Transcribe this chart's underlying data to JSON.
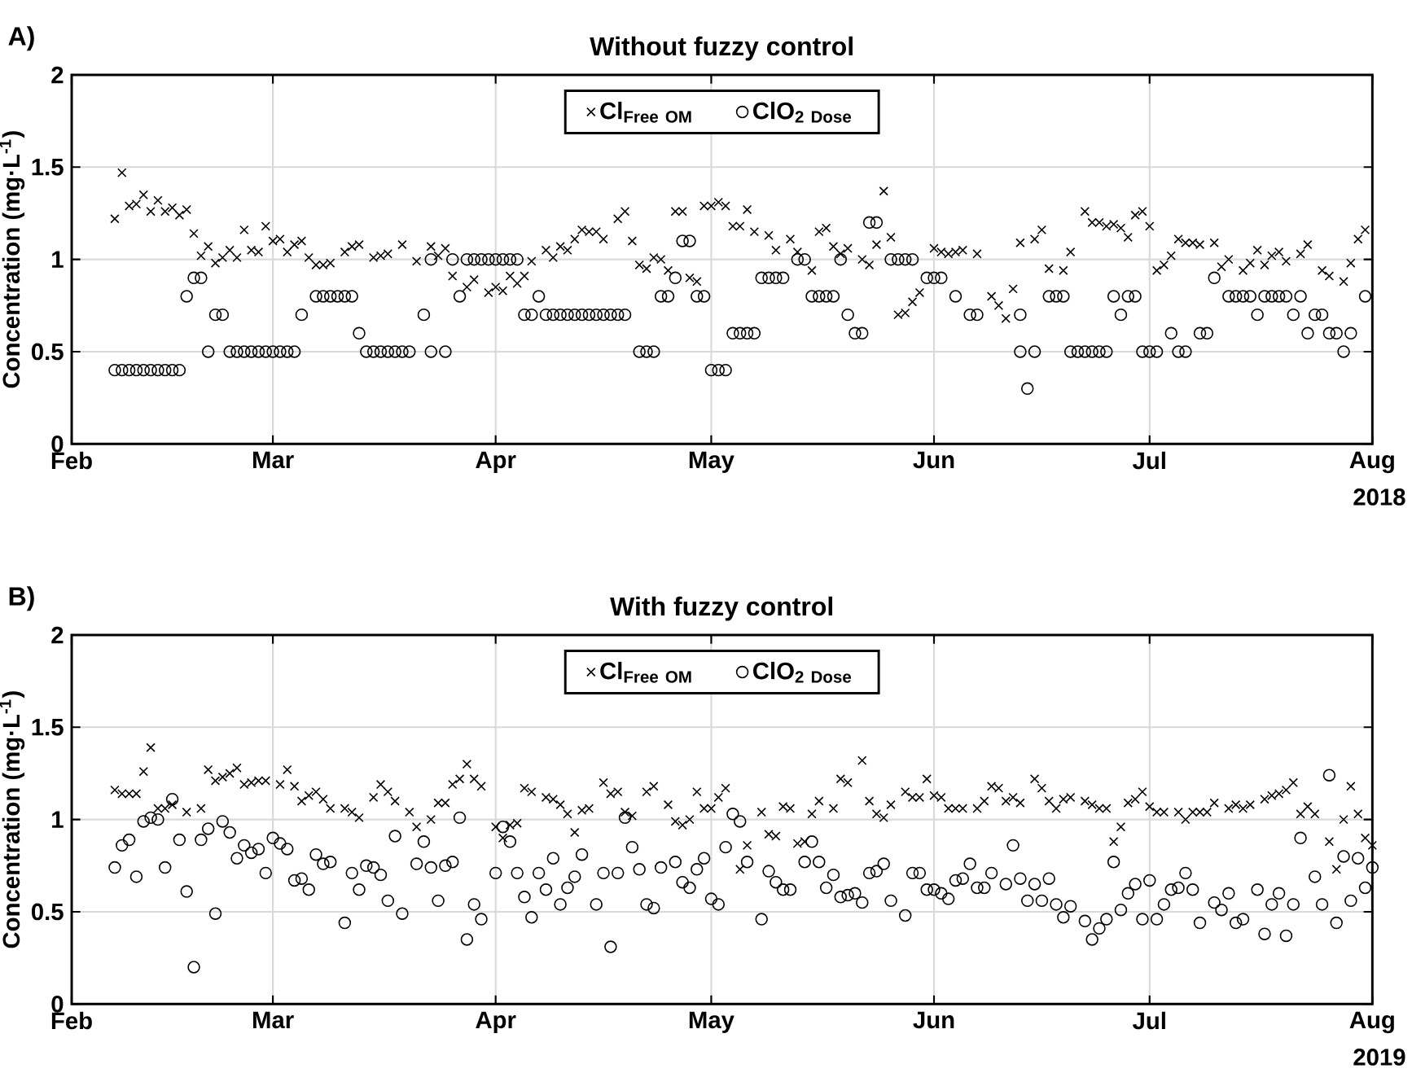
{
  "chart_data": [
    {
      "type": "scatter",
      "title": "Without fuzzy control",
      "xlabel": "2018",
      "ylabel": "Concentration (mg·L$^{-1}$)",
      "annotations": [
        "A)"
      ],
      "xlim": [
        "2018-02-01",
        "2018-08-01"
      ],
      "xticks": [
        {
          "value": "2018-02-01",
          "label": "Feb"
        },
        {
          "value": "2018-03-01",
          "label": "Mar"
        },
        {
          "value": "2018-04-01",
          "label": "Apr"
        },
        {
          "value": "2018-05-01",
          "label": "May"
        },
        {
          "value": "2018-06-01",
          "label": "Jun"
        },
        {
          "value": "2018-07-01",
          "label": "Jul"
        },
        {
          "value": "2018-08-01",
          "label": "Aug"
        }
      ],
      "ylim": [
        0,
        2
      ],
      "yticks": [
        0,
        0.5,
        1,
        1.5,
        2
      ],
      "grid": true,
      "legend": "top",
      "series": [
        {
          "name": "\\mathbf{Cl}_{\\mathbf{Free\\ OM}}",
          "color": "#000000",
          "marker": "cross",
          "x": [
            "2018-02-07",
            "2018-02-08",
            "2018-02-09",
            "2018-02-10",
            "2018-02-11",
            "2018-02-12",
            "2018-02-13",
            "2018-02-14",
            "2018-02-15",
            "2018-02-16",
            "2018-02-17",
            "2018-02-18",
            "2018-02-19",
            "2018-02-20",
            "2018-02-21",
            "2018-02-22",
            "2018-02-23",
            "2018-02-24",
            "2018-02-25",
            "2018-02-26",
            "2018-02-27",
            "2018-02-28",
            "2018-03-01",
            "2018-03-02",
            "2018-03-03",
            "2018-03-04",
            "2018-03-05",
            "2018-03-06",
            "2018-03-07",
            "2018-03-08",
            "2018-03-09",
            "2018-03-11",
            "2018-03-12",
            "2018-03-13",
            "2018-03-15",
            "2018-03-16",
            "2018-03-17",
            "2018-03-19",
            "2018-03-21",
            "2018-03-23",
            "2018-03-24",
            "2018-03-25",
            "2018-03-26",
            "2018-03-28",
            "2018-03-29",
            "2018-03-31",
            "2018-04-01",
            "2018-04-02",
            "2018-04-03",
            "2018-04-04",
            "2018-04-05",
            "2018-04-06",
            "2018-04-08",
            "2018-04-09",
            "2018-04-10",
            "2018-04-11",
            "2018-04-12",
            "2018-04-13",
            "2018-04-14",
            "2018-04-15",
            "2018-04-16",
            "2018-04-18",
            "2018-04-19",
            "2018-04-20",
            "2018-04-21",
            "2018-04-22",
            "2018-04-23",
            "2018-04-24",
            "2018-04-25",
            "2018-04-26",
            "2018-04-27",
            "2018-04-28",
            "2018-04-29",
            "2018-04-30",
            "2018-05-01",
            "2018-05-02",
            "2018-05-03",
            "2018-05-04",
            "2018-05-05",
            "2018-05-06",
            "2018-05-07",
            "2018-05-09",
            "2018-05-10",
            "2018-05-12",
            "2018-05-13",
            "2018-05-15",
            "2018-05-16",
            "2018-05-17",
            "2018-05-18",
            "2018-05-19",
            "2018-05-20",
            "2018-05-22",
            "2018-05-23",
            "2018-05-24",
            "2018-05-25",
            "2018-05-26",
            "2018-05-27",
            "2018-05-28",
            "2018-05-29",
            "2018-05-30",
            "2018-06-01",
            "2018-06-02",
            "2018-06-03",
            "2018-06-04",
            "2018-06-05",
            "2018-06-07",
            "2018-06-09",
            "2018-06-10",
            "2018-06-11",
            "2018-06-12",
            "2018-06-13",
            "2018-06-15",
            "2018-06-16",
            "2018-06-17",
            "2018-06-19",
            "2018-06-20",
            "2018-06-22",
            "2018-06-23",
            "2018-06-24",
            "2018-06-25",
            "2018-06-26",
            "2018-06-27",
            "2018-06-28",
            "2018-06-29",
            "2018-06-30",
            "2018-07-01",
            "2018-07-02",
            "2018-07-03",
            "2018-07-04",
            "2018-07-05",
            "2018-07-06",
            "2018-07-07",
            "2018-07-08",
            "2018-07-10",
            "2018-07-11",
            "2018-07-12",
            "2018-07-14",
            "2018-07-15",
            "2018-07-16",
            "2018-07-17",
            "2018-07-18",
            "2018-07-19",
            "2018-07-20",
            "2018-07-22",
            "2018-07-23",
            "2018-07-25",
            "2018-07-26",
            "2018-07-28",
            "2018-07-29",
            "2018-07-30",
            "2018-07-31"
          ],
          "values": [
            1.22,
            1.47,
            1.29,
            1.3,
            1.35,
            1.26,
            1.32,
            1.26,
            1.28,
            1.24,
            1.27,
            1.14,
            1.02,
            1.07,
            0.98,
            1.01,
            1.05,
            1.01,
            1.16,
            1.05,
            1.04,
            1.18,
            1.1,
            1.11,
            1.04,
            1.08,
            1.1,
            1.01,
            0.97,
            0.97,
            0.98,
            1.04,
            1.07,
            1.08,
            1.01,
            1.02,
            1.03,
            1.08,
            0.99,
            1.07,
            1.02,
            1.06,
            0.91,
            0.85,
            0.89,
            0.82,
            0.85,
            0.83,
            0.91,
            0.87,
            0.91,
            0.99,
            1.05,
            1.01,
            1.07,
            1.05,
            1.11,
            1.16,
            1.15,
            1.15,
            1.11,
            1.22,
            1.26,
            1.1,
            0.97,
            0.95,
            1.01,
            1.0,
            0.94,
            1.26,
            1.26,
            0.9,
            0.88,
            1.29,
            1.29,
            1.31,
            1.29,
            1.18,
            1.18,
            1.27,
            1.15,
            1.13,
            1.05,
            1.11,
            1.04,
            0.94,
            1.15,
            1.17,
            1.07,
            1.03,
            1.06,
            1.0,
            0.97,
            1.08,
            1.37,
            1.12,
            0.7,
            0.71,
            0.77,
            0.82,
            1.06,
            1.04,
            1.03,
            1.04,
            1.05,
            1.03,
            0.8,
            0.75,
            0.68,
            0.84,
            1.09,
            1.11,
            1.16,
            0.95,
            0.94,
            1.04,
            1.26,
            1.2,
            1.2,
            1.18,
            1.19,
            1.17,
            1.12,
            1.24,
            1.26,
            1.18,
            0.94,
            0.97,
            1.02,
            1.11,
            1.09,
            1.09,
            1.08,
            1.09,
            0.96,
            1.0,
            0.94,
            0.98,
            1.05,
            0.97,
            1.02,
            1.04,
            0.99,
            1.03,
            1.08,
            0.94,
            0.91,
            0.88,
            0.98,
            1.11,
            1.16
          ]
        },
        {
          "name": "\\mathbf{ClO}_{\\mathbf{2\\ Dose}}",
          "color": "#000000",
          "marker": "circle",
          "x": [
            "2018-02-07",
            "2018-02-08",
            "2018-02-09",
            "2018-02-10",
            "2018-02-11",
            "2018-02-12",
            "2018-02-13",
            "2018-02-14",
            "2018-02-15",
            "2018-02-16",
            "2018-02-17",
            "2018-02-18",
            "2018-02-19",
            "2018-02-20",
            "2018-02-21",
            "2018-02-22",
            "2018-02-23",
            "2018-02-24",
            "2018-02-25",
            "2018-02-26",
            "2018-02-27",
            "2018-02-28",
            "2018-03-01",
            "2018-03-02",
            "2018-03-03",
            "2018-03-04",
            "2018-03-05",
            "2018-03-07",
            "2018-03-08",
            "2018-03-09",
            "2018-03-10",
            "2018-03-11",
            "2018-03-12",
            "2018-03-13",
            "2018-03-14",
            "2018-03-15",
            "2018-03-16",
            "2018-03-17",
            "2018-03-18",
            "2018-03-19",
            "2018-03-20",
            "2018-03-22",
            "2018-03-23",
            "2018-03-23",
            "2018-03-25",
            "2018-03-26",
            "2018-03-27",
            "2018-03-28",
            "2018-03-29",
            "2018-03-30",
            "2018-03-31",
            "2018-04-01",
            "2018-04-02",
            "2018-04-03",
            "2018-04-04",
            "2018-04-05",
            "2018-04-06",
            "2018-04-07",
            "2018-04-08",
            "2018-04-09",
            "2018-04-10",
            "2018-04-11",
            "2018-04-12",
            "2018-04-13",
            "2018-04-14",
            "2018-04-15",
            "2018-04-16",
            "2018-04-17",
            "2018-04-18",
            "2018-04-19",
            "2018-04-21",
            "2018-04-22",
            "2018-04-23",
            "2018-04-24",
            "2018-04-25",
            "2018-04-26",
            "2018-04-27",
            "2018-04-28",
            "2018-04-29",
            "2018-04-30",
            "2018-05-01",
            "2018-05-02",
            "2018-05-03",
            "2018-05-04",
            "2018-05-05",
            "2018-05-06",
            "2018-05-07",
            "2018-05-08",
            "2018-05-09",
            "2018-05-10",
            "2018-05-11",
            "2018-05-13",
            "2018-05-14",
            "2018-05-15",
            "2018-05-16",
            "2018-05-17",
            "2018-05-18",
            "2018-05-19",
            "2018-05-20",
            "2018-05-21",
            "2018-05-22",
            "2018-05-23",
            "2018-05-24",
            "2018-05-26",
            "2018-05-27",
            "2018-05-28",
            "2018-05-29",
            "2018-05-31",
            "2018-06-01",
            "2018-06-02",
            "2018-06-04",
            "2018-06-06",
            "2018-06-07",
            "2018-06-13",
            "2018-06-13",
            "2018-06-14",
            "2018-06-15",
            "2018-06-17",
            "2018-06-18",
            "2018-06-19",
            "2018-06-20",
            "2018-06-21",
            "2018-06-22",
            "2018-06-23",
            "2018-06-24",
            "2018-06-25",
            "2018-06-26",
            "2018-06-27",
            "2018-06-28",
            "2018-06-29",
            "2018-06-30",
            "2018-07-01",
            "2018-07-02",
            "2018-07-04",
            "2018-07-05",
            "2018-07-06",
            "2018-07-08",
            "2018-07-09",
            "2018-07-10",
            "2018-07-12",
            "2018-07-13",
            "2018-07-14",
            "2018-07-15",
            "2018-07-16",
            "2018-07-17",
            "2018-07-18",
            "2018-07-19",
            "2018-07-20",
            "2018-07-21",
            "2018-07-22",
            "2018-07-23",
            "2018-07-24",
            "2018-07-25",
            "2018-07-26",
            "2018-07-27",
            "2018-07-28",
            "2018-07-29",
            "2018-07-31"
          ],
          "values": [
            0.4,
            0.4,
            0.4,
            0.4,
            0.4,
            0.4,
            0.4,
            0.4,
            0.4,
            0.4,
            0.8,
            0.9,
            0.9,
            0.5,
            0.7,
            0.7,
            0.5,
            0.5,
            0.5,
            0.5,
            0.5,
            0.5,
            0.5,
            0.5,
            0.5,
            0.5,
            0.7,
            0.8,
            0.8,
            0.8,
            0.8,
            0.8,
            0.8,
            0.6,
            0.5,
            0.5,
            0.5,
            0.5,
            0.5,
            0.5,
            0.5,
            0.7,
            0.5,
            1.0,
            0.5,
            1.0,
            0.8,
            1.0,
            1.0,
            1.0,
            1.0,
            1.0,
            1.0,
            1.0,
            1.0,
            0.7,
            0.7,
            0.8,
            0.7,
            0.7,
            0.7,
            0.7,
            0.7,
            0.7,
            0.7,
            0.7,
            0.7,
            0.7,
            0.7,
            0.7,
            0.5,
            0.5,
            0.5,
            0.8,
            0.8,
            0.9,
            1.1,
            1.1,
            0.8,
            0.8,
            0.4,
            0.4,
            0.4,
            0.6,
            0.6,
            0.6,
            0.6,
            0.9,
            0.9,
            0.9,
            0.9,
            1.0,
            1.0,
            0.8,
            0.8,
            0.8,
            0.8,
            1.0,
            0.7,
            0.6,
            0.6,
            1.2,
            1.2,
            1.0,
            1.0,
            1.0,
            1.0,
            0.9,
            0.9,
            0.9,
            0.8,
            0.7,
            0.7,
            0.7,
            0.5,
            0.3,
            0.5,
            0.8,
            0.8,
            0.8,
            0.5,
            0.5,
            0.5,
            0.5,
            0.5,
            0.5,
            0.8,
            0.7,
            0.8,
            0.8,
            0.5,
            0.5,
            0.5,
            0.6,
            0.5,
            0.5,
            0.6,
            0.6,
            0.9,
            0.8,
            0.8,
            0.8,
            0.8,
            0.7,
            0.8,
            0.8,
            0.8,
            0.8,
            0.7,
            0.8,
            0.6,
            0.7,
            0.7,
            0.6,
            0.6,
            0.5,
            0.6,
            0.8
          ]
        }
      ]
    },
    {
      "type": "scatter",
      "title": "With fuzzy control",
      "xlabel": "2019",
      "ylabel": "Concentration (mg·L$^{-1}$)",
      "annotations": [
        "B)"
      ],
      "xlim": [
        "2019-02-01",
        "2019-08-01"
      ],
      "xticks": [
        {
          "value": "2019-02-01",
          "label": "Feb"
        },
        {
          "value": "2019-03-01",
          "label": "Mar"
        },
        {
          "value": "2019-04-01",
          "label": "Apr"
        },
        {
          "value": "2019-05-01",
          "label": "May"
        },
        {
          "value": "2019-06-01",
          "label": "Jun"
        },
        {
          "value": "2019-07-01",
          "label": "Jul"
        },
        {
          "value": "2019-08-01",
          "label": "Aug"
        }
      ],
      "ylim": [
        0,
        2
      ],
      "yticks": [
        0,
        0.5,
        1,
        1.5,
        2
      ],
      "grid": true,
      "legend": "top",
      "series": [
        {
          "name": "\\mathbf{Cl}_{\\mathbf{Free\\ OM}}",
          "color": "#000000",
          "marker": "cross",
          "x": [
            "2019-02-07",
            "2019-02-08",
            "2019-02-09",
            "2019-02-10",
            "2019-02-11",
            "2019-02-12",
            "2019-02-13",
            "2019-02-14",
            "2019-02-15",
            "2019-02-17",
            "2019-02-19",
            "2019-02-20",
            "2019-02-21",
            "2019-02-22",
            "2019-02-23",
            "2019-02-24",
            "2019-02-25",
            "2019-02-26",
            "2019-02-27",
            "2019-02-28",
            "2019-03-02",
            "2019-03-03",
            "2019-03-04",
            "2019-03-05",
            "2019-03-06",
            "2019-03-07",
            "2019-03-08",
            "2019-03-09",
            "2019-03-11",
            "2019-03-12",
            "2019-03-13",
            "2019-03-15",
            "2019-03-16",
            "2019-03-17",
            "2019-03-18",
            "2019-03-20",
            "2019-03-21",
            "2019-03-23",
            "2019-03-24",
            "2019-03-25",
            "2019-03-26",
            "2019-03-27",
            "2019-03-28",
            "2019-03-29",
            "2019-03-30",
            "2019-04-01",
            "2019-04-02",
            "2019-04-03",
            "2019-04-04",
            "2019-04-05",
            "2019-04-06",
            "2019-04-08",
            "2019-04-09",
            "2019-04-10",
            "2019-04-11",
            "2019-04-12",
            "2019-04-13",
            "2019-04-14",
            "2019-04-16",
            "2019-04-17",
            "2019-04-18",
            "2019-04-19",
            "2019-04-20",
            "2019-04-22",
            "2019-04-23",
            "2019-04-25",
            "2019-04-26",
            "2019-04-27",
            "2019-04-28",
            "2019-04-29",
            "2019-04-30",
            "2019-05-01",
            "2019-05-02",
            "2019-05-03",
            "2019-05-05",
            "2019-05-06",
            "2019-05-08",
            "2019-05-09",
            "2019-05-10",
            "2019-05-11",
            "2019-05-12",
            "2019-05-13",
            "2019-05-14",
            "2019-05-15",
            "2019-05-16",
            "2019-05-18",
            "2019-05-19",
            "2019-05-20",
            "2019-05-22",
            "2019-05-23",
            "2019-05-24",
            "2019-05-25",
            "2019-05-26",
            "2019-05-28",
            "2019-05-29",
            "2019-05-30",
            "2019-05-31",
            "2019-06-01",
            "2019-06-02",
            "2019-06-03",
            "2019-06-04",
            "2019-06-05",
            "2019-06-07",
            "2019-06-08",
            "2019-06-09",
            "2019-06-10",
            "2019-06-11",
            "2019-06-12",
            "2019-06-13",
            "2019-06-15",
            "2019-06-16",
            "2019-06-17",
            "2019-06-18",
            "2019-06-19",
            "2019-06-20",
            "2019-06-22",
            "2019-06-23",
            "2019-06-24",
            "2019-06-25",
            "2019-06-26",
            "2019-06-27",
            "2019-06-28",
            "2019-06-29",
            "2019-06-30",
            "2019-07-01",
            "2019-07-02",
            "2019-07-03",
            "2019-07-05",
            "2019-07-06",
            "2019-07-07",
            "2019-07-08",
            "2019-07-09",
            "2019-07-10",
            "2019-07-12",
            "2019-07-13",
            "2019-07-14",
            "2019-07-15",
            "2019-07-17",
            "2019-07-18",
            "2019-07-19",
            "2019-07-20",
            "2019-07-21",
            "2019-07-22",
            "2019-07-23",
            "2019-07-24",
            "2019-07-26",
            "2019-07-27",
            "2019-07-28",
            "2019-07-29",
            "2019-07-30",
            "2019-07-31",
            "2019-08-01"
          ],
          "values": [
            1.16,
            1.14,
            1.14,
            1.14,
            1.26,
            1.39,
            1.06,
            1.06,
            1.08,
            1.04,
            1.06,
            1.27,
            1.21,
            1.23,
            1.25,
            1.28,
            1.19,
            1.2,
            1.21,
            1.21,
            1.19,
            1.27,
            1.18,
            1.1,
            1.13,
            1.15,
            1.11,
            1.06,
            1.06,
            1.04,
            1.01,
            1.12,
            1.19,
            1.15,
            1.1,
            1.04,
            0.96,
            1.0,
            1.09,
            1.09,
            1.19,
            1.22,
            1.3,
            1.22,
            1.18,
            0.96,
            0.9,
            0.97,
            0.98,
            1.17,
            1.15,
            1.12,
            1.11,
            1.08,
            1.03,
            0.93,
            1.05,
            1.06,
            1.2,
            1.14,
            1.15,
            1.04,
            1.02,
            1.15,
            1.18,
            1.08,
            0.99,
            0.97,
            1.0,
            1.15,
            1.06,
            1.06,
            1.12,
            1.17,
            0.73,
            0.86,
            1.04,
            0.92,
            0.91,
            1.07,
            1.06,
            0.87,
            0.88,
            1.03,
            1.1,
            1.06,
            1.22,
            1.2,
            1.32,
            1.1,
            1.03,
            1.01,
            1.08,
            1.15,
            1.12,
            1.12,
            1.22,
            1.13,
            1.12,
            1.06,
            1.06,
            1.06,
            1.06,
            1.1,
            1.18,
            1.17,
            1.1,
            1.12,
            1.09,
            1.22,
            1.17,
            1.1,
            1.06,
            1.11,
            1.12,
            1.1,
            1.08,
            1.06,
            1.06,
            0.88,
            0.96,
            1.09,
            1.11,
            1.15,
            1.07,
            1.04,
            1.04,
            1.04,
            1.0,
            1.04,
            1.04,
            1.04,
            1.09,
            1.06,
            1.08,
            1.06,
            1.08,
            1.11,
            1.13,
            1.14,
            1.16,
            1.2,
            1.03,
            1.07,
            1.03,
            0.88,
            0.73,
            1.0,
            1.18,
            1.03,
            0.9,
            0.86
          ]
        },
        {
          "name": "\\mathbf{ClO}_{\\mathbf{2\\ Dose}}",
          "color": "#000000",
          "marker": "circle",
          "x": [
            "2019-02-07",
            "2019-02-08",
            "2019-02-09",
            "2019-02-10",
            "2019-02-11",
            "2019-02-12",
            "2019-02-13",
            "2019-02-14",
            "2019-02-15",
            "2019-02-16",
            "2019-02-17",
            "2019-02-18",
            "2019-02-19",
            "2019-02-20",
            "2019-02-21",
            "2019-02-22",
            "2019-02-23",
            "2019-02-24",
            "2019-02-25",
            "2019-02-26",
            "2019-02-27",
            "2019-02-28",
            "2019-03-01",
            "2019-03-02",
            "2019-03-03",
            "2019-03-04",
            "2019-03-05",
            "2019-03-06",
            "2019-03-07",
            "2019-03-08",
            "2019-03-09",
            "2019-03-11",
            "2019-03-12",
            "2019-03-13",
            "2019-03-14",
            "2019-03-15",
            "2019-03-16",
            "2019-03-17",
            "2019-03-18",
            "2019-03-19",
            "2019-03-21",
            "2019-03-22",
            "2019-03-23",
            "2019-03-24",
            "2019-03-25",
            "2019-03-26",
            "2019-03-27",
            "2019-03-28",
            "2019-03-29",
            "2019-03-30",
            "2019-04-01",
            "2019-04-02",
            "2019-04-03",
            "2019-04-04",
            "2019-04-05",
            "2019-04-06",
            "2019-04-07",
            "2019-04-08",
            "2019-04-09",
            "2019-04-10",
            "2019-04-11",
            "2019-04-12",
            "2019-04-13",
            "2019-04-15",
            "2019-04-16",
            "2019-04-17",
            "2019-04-18",
            "2019-04-19",
            "2019-04-20",
            "2019-04-21",
            "2019-04-22",
            "2019-04-23",
            "2019-04-24",
            "2019-04-26",
            "2019-04-27",
            "2019-04-28",
            "2019-04-29",
            "2019-04-30",
            "2019-05-01",
            "2019-05-02",
            "2019-05-03",
            "2019-05-04",
            "2019-05-05",
            "2019-05-06",
            "2019-05-08",
            "2019-05-09",
            "2019-05-10",
            "2019-05-11",
            "2019-05-12",
            "2019-05-14",
            "2019-05-15",
            "2019-05-16",
            "2019-05-17",
            "2019-05-18",
            "2019-05-19",
            "2019-05-20",
            "2019-05-21",
            "2019-05-22",
            "2019-05-23",
            "2019-05-24",
            "2019-05-25",
            "2019-05-26",
            "2019-05-28",
            "2019-05-29",
            "2019-05-30",
            "2019-05-31",
            "2019-06-01",
            "2019-06-02",
            "2019-06-03",
            "2019-06-04",
            "2019-06-05",
            "2019-06-06",
            "2019-06-07",
            "2019-06-08",
            "2019-06-09",
            "2019-06-11",
            "2019-06-12",
            "2019-06-13",
            "2019-06-14",
            "2019-06-15",
            "2019-06-16",
            "2019-06-17",
            "2019-06-18",
            "2019-06-19",
            "2019-06-20",
            "2019-06-22",
            "2019-06-23",
            "2019-06-24",
            "2019-06-25",
            "2019-06-26",
            "2019-06-27",
            "2019-06-28",
            "2019-06-29",
            "2019-06-30",
            "2019-07-01",
            "2019-07-02",
            "2019-07-03",
            "2019-07-04",
            "2019-07-05",
            "2019-07-06",
            "2019-07-07",
            "2019-07-08",
            "2019-07-10",
            "2019-07-11",
            "2019-07-12",
            "2019-07-13",
            "2019-07-14",
            "2019-07-16",
            "2019-07-17",
            "2019-07-18",
            "2019-07-19",
            "2019-07-20",
            "2019-07-21",
            "2019-07-22",
            "2019-07-24",
            "2019-07-25",
            "2019-07-26",
            "2019-07-27",
            "2019-07-28",
            "2019-07-29",
            "2019-07-30",
            "2019-07-31",
            "2019-08-01"
          ],
          "values": [
            0.74,
            0.86,
            0.89,
            0.69,
            0.99,
            1.01,
            1.0,
            0.74,
            1.11,
            0.89,
            0.61,
            0.2,
            0.89,
            0.95,
            0.49,
            0.99,
            0.93,
            0.79,
            0.86,
            0.82,
            0.84,
            0.71,
            0.9,
            0.87,
            0.84,
            0.67,
            0.68,
            0.62,
            0.81,
            0.76,
            0.77,
            0.44,
            0.71,
            0.62,
            0.75,
            0.74,
            0.7,
            0.56,
            0.91,
            0.49,
            0.76,
            0.88,
            0.74,
            0.56,
            0.75,
            0.77,
            1.01,
            0.35,
            0.54,
            0.46,
            0.71,
            0.96,
            0.88,
            0.71,
            0.58,
            0.47,
            0.71,
            0.62,
            0.79,
            0.54,
            0.63,
            0.69,
            0.81,
            0.54,
            0.71,
            0.31,
            0.71,
            1.01,
            0.85,
            0.73,
            0.54,
            0.52,
            0.74,
            0.77,
            0.66,
            0.63,
            0.73,
            0.79,
            0.57,
            0.54,
            0.85,
            1.03,
            0.99,
            0.77,
            0.46,
            0.72,
            0.66,
            0.62,
            0.62,
            0.77,
            0.88,
            0.77,
            0.63,
            0.7,
            0.58,
            0.59,
            0.6,
            0.55,
            0.71,
            0.72,
            0.76,
            0.56,
            0.48,
            0.71,
            0.71,
            0.62,
            0.62,
            0.6,
            0.57,
            0.67,
            0.68,
            0.76,
            0.63,
            0.63,
            0.71,
            0.65,
            0.86,
            0.68,
            0.56,
            0.65,
            0.56,
            0.68,
            0.54,
            0.47,
            0.53,
            0.45,
            0.35,
            0.41,
            0.46,
            0.77,
            0.51,
            0.6,
            0.65,
            0.46,
            0.67,
            0.46,
            0.54,
            0.62,
            0.63,
            0.71,
            0.62,
            0.44,
            0.55,
            0.51,
            0.6,
            0.44,
            0.46,
            0.62,
            0.38,
            0.54,
            0.6,
            0.37,
            0.54,
            0.9,
            0.69,
            0.54,
            1.24,
            0.44,
            0.8,
            0.56,
            0.79,
            0.63,
            0.74
          ]
        }
      ]
    }
  ]
}
